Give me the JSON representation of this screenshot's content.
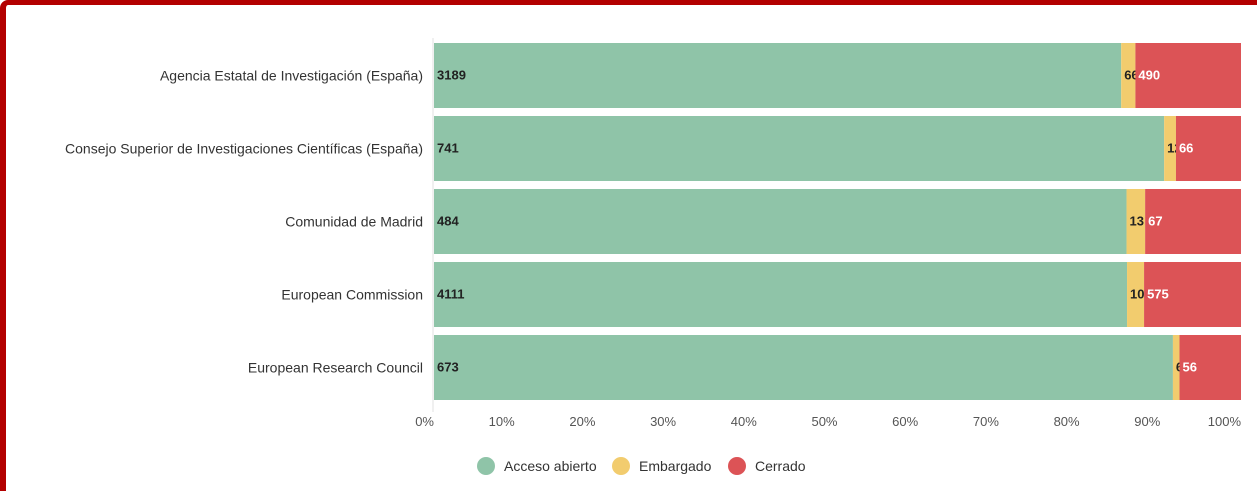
{
  "chart_data": {
    "type": "bar",
    "orientation": "horizontal",
    "stacked": "percent",
    "categories": [
      "Agencia Estatal de Investigación (España)",
      "Consejo Superior de Investigaciones Científicas (España)",
      "Comunidad de Madrid",
      "European Commission",
      "European Research Council"
    ],
    "series": [
      {
        "name": "Acceso abierto",
        "values": [
          3189,
          741,
          484,
          4111,
          673
        ],
        "color": "#8fc4a8"
      },
      {
        "name": "Embargado",
        "values": [
          66,
          12,
          13,
          101,
          6
        ],
        "color": "#f2cc6e"
      },
      {
        "name": "Cerrado",
        "values": [
          490,
          66,
          67,
          575,
          56
        ],
        "color": "#dc5356"
      }
    ],
    "x_ticks": [
      "0%",
      "10%",
      "20%",
      "30%",
      "40%",
      "50%",
      "60%",
      "70%",
      "80%",
      "90%",
      "100%"
    ],
    "xlim": [
      0,
      100
    ],
    "grid": false,
    "legend_position": "bottom"
  }
}
